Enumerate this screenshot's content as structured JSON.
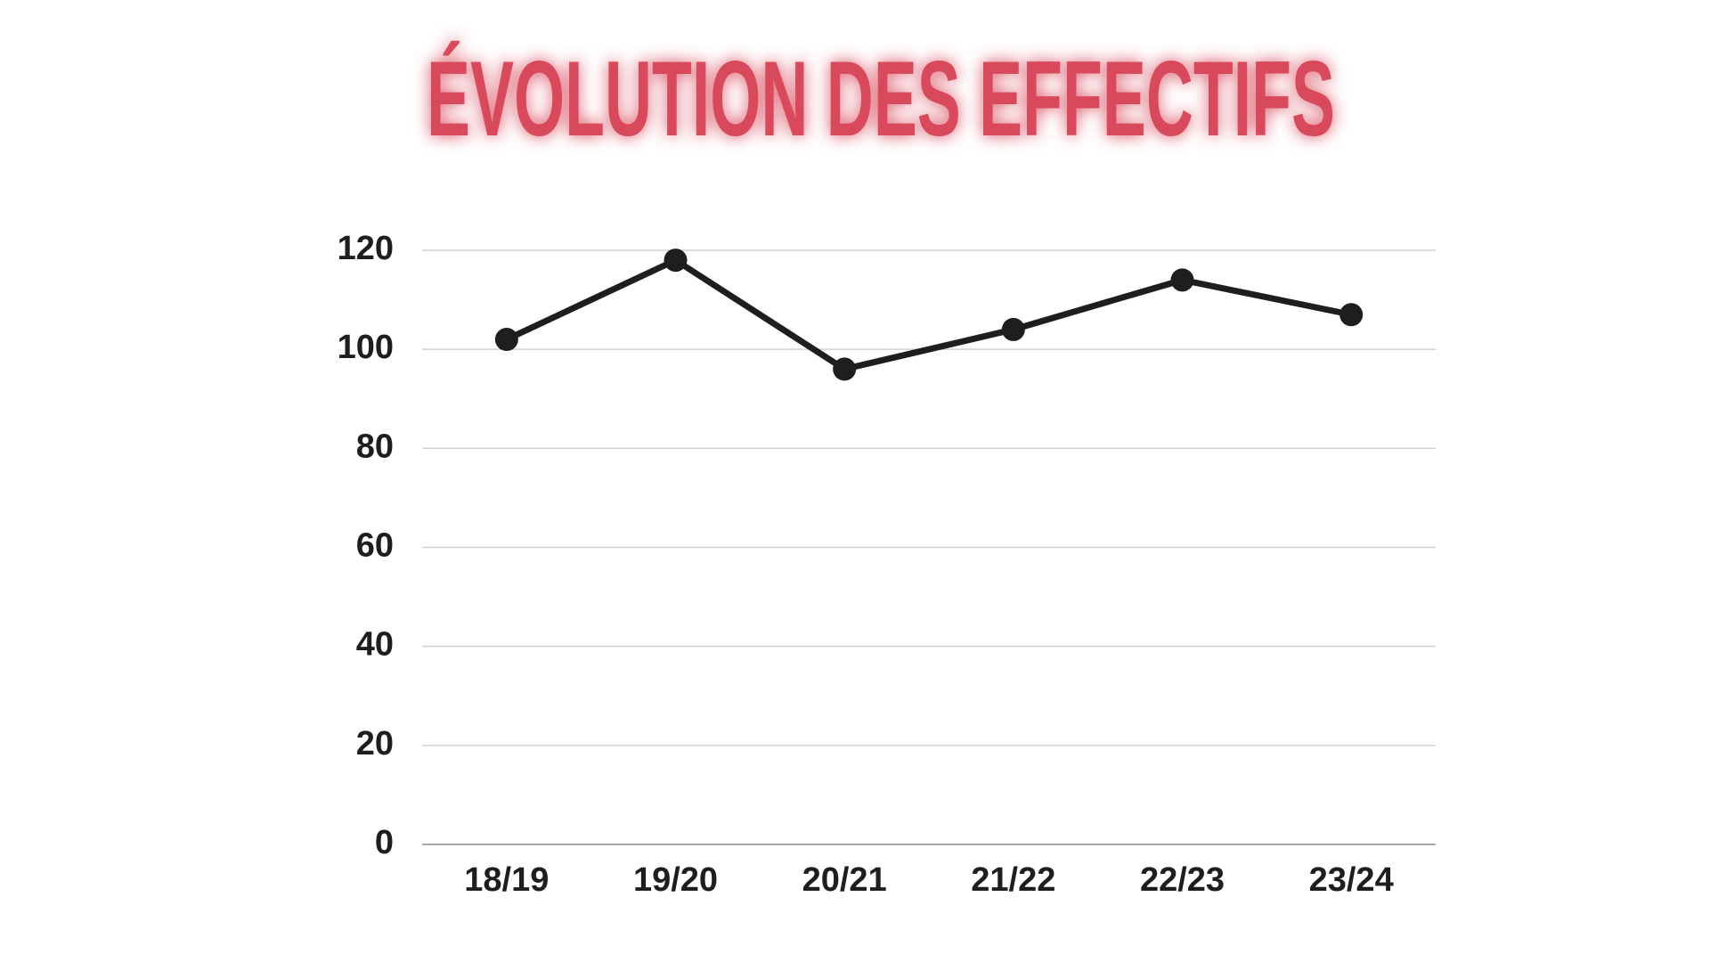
{
  "chart_data": {
    "type": "line",
    "title": "ÉVOLUTION DES EFFECTIFS",
    "categories": [
      "18/19",
      "19/20",
      "20/21",
      "21/22",
      "22/23",
      "23/24"
    ],
    "series": [
      {
        "name": null,
        "color": "#1e1e1e",
        "values": [
          102,
          118,
          96,
          104,
          114,
          107
        ]
      }
    ],
    "ylim": [
      0,
      120
    ],
    "yticks": [
      0,
      20,
      40,
      60,
      80,
      100,
      120
    ],
    "grid": true,
    "title_color": "#d94a5c"
  }
}
